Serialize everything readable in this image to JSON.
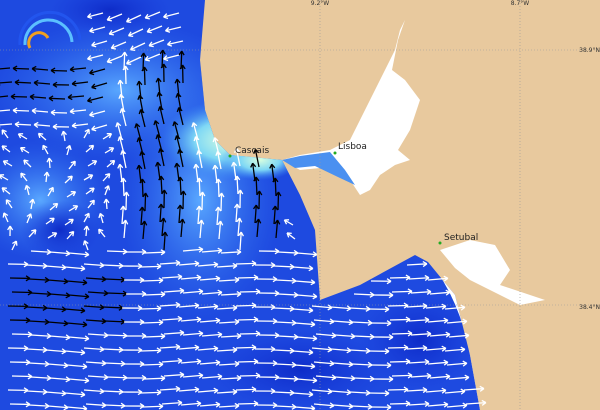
{
  "map": {
    "graticule": {
      "longitudes": [
        "9.2°W",
        "8.7°W"
      ],
      "latitudes": [
        "38.9°N",
        "38.4°N"
      ]
    },
    "places": [
      {
        "name": "Cascais"
      },
      {
        "name": "Lisboa"
      },
      {
        "name": "Setubal"
      }
    ]
  }
}
